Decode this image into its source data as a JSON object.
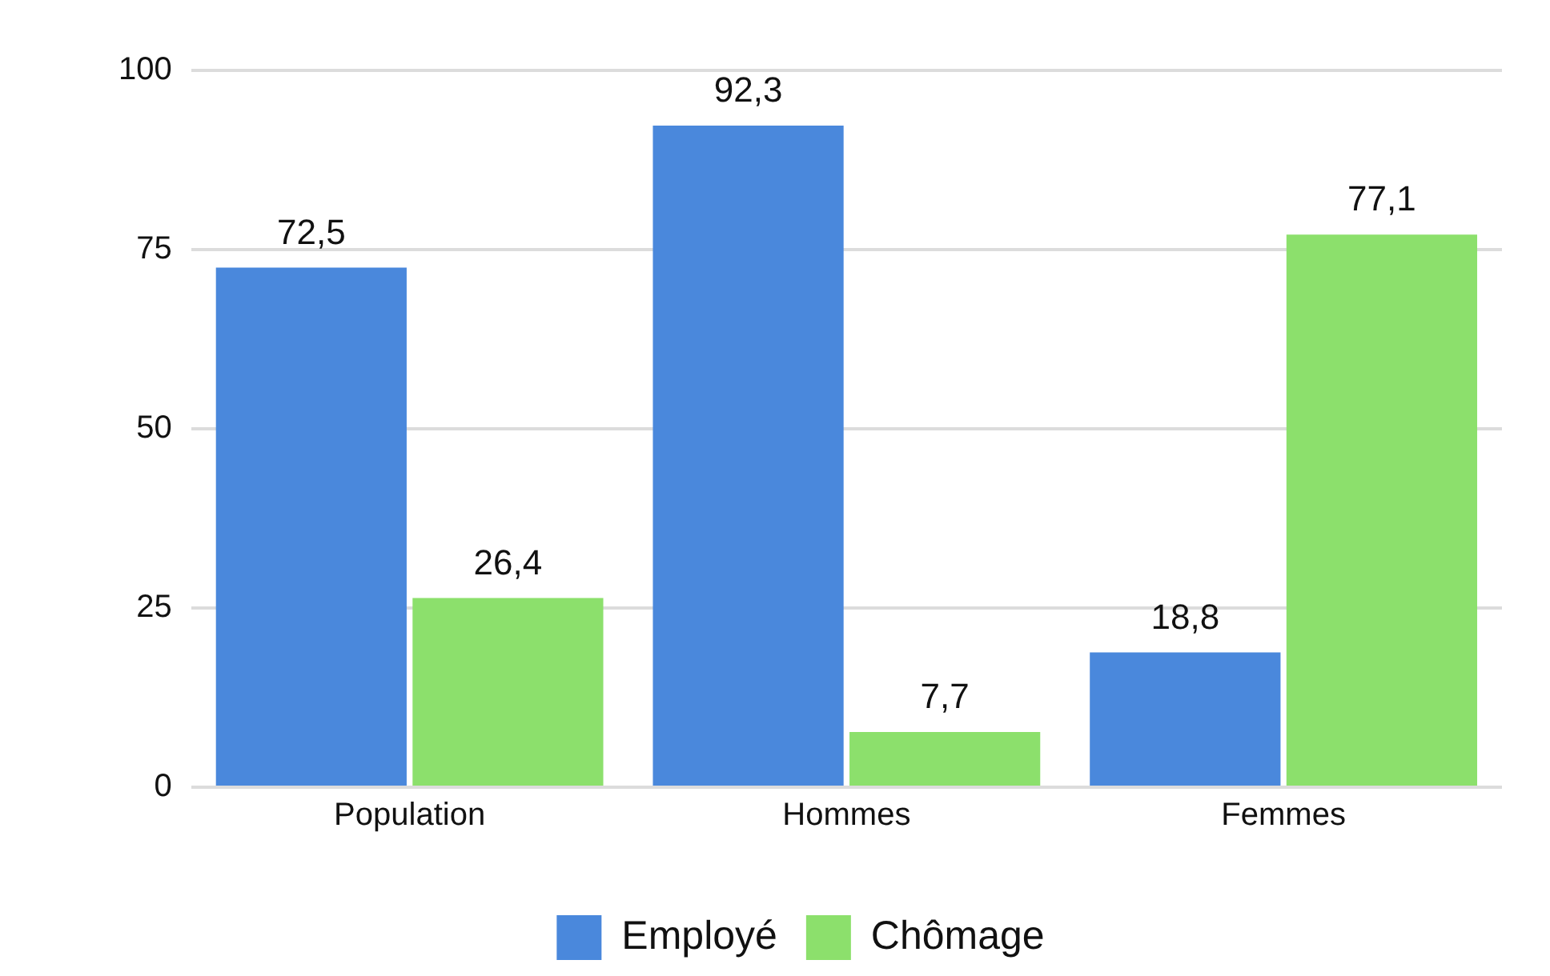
{
  "chart_data": {
    "type": "bar",
    "categories": [
      "Population",
      "Hommes",
      "Femmes"
    ],
    "series": [
      {
        "name": "Employé",
        "color": "#4a88dc",
        "values": [
          72.5,
          92.3,
          18.8
        ],
        "value_labels": [
          "72,5",
          "92,3",
          "18,8"
        ]
      },
      {
        "name": "Chômage",
        "color": "#8ce06c",
        "values": [
          26.4,
          7.7,
          77.1
        ],
        "value_labels": [
          "26,4",
          "7,7",
          "77,1"
        ]
      }
    ],
    "ylim": [
      0,
      100
    ],
    "yticks": [
      0,
      25,
      50,
      75,
      100
    ],
    "grid": "y",
    "legend": "bottom"
  }
}
